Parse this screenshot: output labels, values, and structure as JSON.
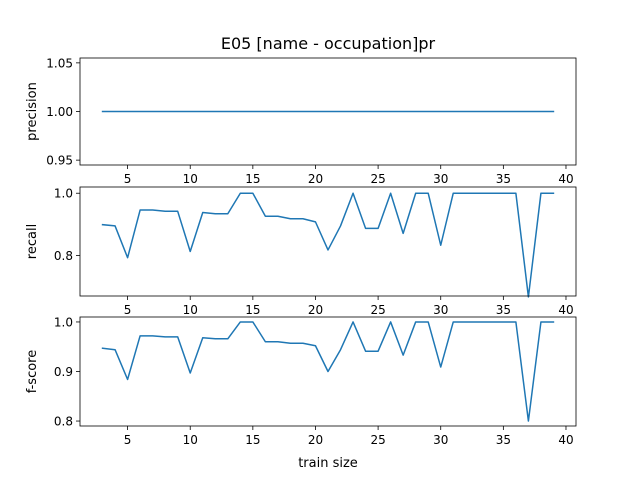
{
  "chart_data": [
    {
      "type": "line",
      "title": "E05 [name - occupation]pr",
      "xlabel": "",
      "ylabel": "precision",
      "xlim": [
        1.2,
        40.8
      ],
      "ylim": [
        0.945,
        1.055
      ],
      "xticks": [
        5,
        10,
        15,
        20,
        25,
        30,
        35,
        40
      ],
      "yticks": [
        0.95,
        1.0,
        1.05
      ],
      "ytick_labels": [
        "0.95",
        "1.00",
        "1.05"
      ],
      "series": [
        {
          "color": "#1f77b4",
          "x": [
            3,
            4,
            5,
            6,
            7,
            8,
            9,
            10,
            11,
            12,
            13,
            14,
            15,
            16,
            17,
            18,
            19,
            20,
            21,
            22,
            23,
            24,
            25,
            26,
            27,
            28,
            29,
            30,
            31,
            32,
            33,
            34,
            35,
            36,
            37,
            38,
            39
          ],
          "y": [
            1,
            1,
            1,
            1,
            1,
            1,
            1,
            1,
            1,
            1,
            1,
            1,
            1,
            1,
            1,
            1,
            1,
            1,
            1,
            1,
            1,
            1,
            1,
            1,
            1,
            1,
            1,
            1,
            1,
            1,
            1,
            1,
            1,
            1,
            1,
            1,
            1
          ]
        }
      ]
    },
    {
      "type": "line",
      "title": "",
      "xlabel": "",
      "ylabel": "recall",
      "xlim": [
        1.2,
        40.8
      ],
      "ylim": [
        0.67,
        1.02
      ],
      "xticks": [
        5,
        10,
        15,
        20,
        25,
        30,
        35,
        40
      ],
      "yticks": [
        0.8,
        1.0
      ],
      "ytick_labels": [
        "0.8",
        "1.0"
      ],
      "series": [
        {
          "color": "#1f77b4",
          "x": [
            3,
            4,
            5,
            6,
            7,
            8,
            9,
            10,
            11,
            12,
            13,
            14,
            15,
            16,
            17,
            18,
            19,
            20,
            21,
            22,
            23,
            24,
            25,
            26,
            27,
            28,
            29,
            30,
            31,
            32,
            33,
            34,
            35,
            36,
            37,
            38,
            39
          ],
          "y": [
            0.899,
            0.895,
            0.793,
            0.946,
            0.946,
            0.942,
            0.942,
            0.813,
            0.938,
            0.934,
            0.934,
            1.0,
            1.0,
            0.926,
            0.926,
            0.918,
            0.918,
            0.908,
            0.818,
            0.895,
            1.0,
            0.887,
            0.887,
            1.0,
            0.871,
            1.0,
            1.0,
            0.833,
            1.0,
            1.0,
            1.0,
            1.0,
            1.0,
            1.0,
            0.667,
            1.0,
            1.0
          ]
        }
      ]
    },
    {
      "type": "line",
      "title": "",
      "xlabel": "train size",
      "ylabel": "f-score",
      "xlim": [
        1.2,
        40.8
      ],
      "ylim": [
        0.79,
        1.01
      ],
      "xticks": [
        5,
        10,
        15,
        20,
        25,
        30,
        35,
        40
      ],
      "yticks": [
        0.8,
        0.9,
        1.0
      ],
      "ytick_labels": [
        "0.8",
        "0.9",
        "1.0"
      ],
      "series": [
        {
          "color": "#1f77b4",
          "x": [
            3,
            4,
            5,
            6,
            7,
            8,
            9,
            10,
            11,
            12,
            13,
            14,
            15,
            16,
            17,
            18,
            19,
            20,
            21,
            22,
            23,
            24,
            25,
            26,
            27,
            28,
            29,
            30,
            31,
            32,
            33,
            34,
            35,
            36,
            37,
            38,
            39
          ],
          "y": [
            0.947,
            0.944,
            0.884,
            0.972,
            0.972,
            0.97,
            0.97,
            0.897,
            0.968,
            0.966,
            0.966,
            1.0,
            1.0,
            0.96,
            0.96,
            0.957,
            0.957,
            0.952,
            0.9,
            0.944,
            1.0,
            0.941,
            0.941,
            1.0,
            0.933,
            1.0,
            1.0,
            0.909,
            1.0,
            1.0,
            1.0,
            1.0,
            1.0,
            1.0,
            0.8,
            1.0,
            1.0
          ]
        }
      ]
    }
  ]
}
